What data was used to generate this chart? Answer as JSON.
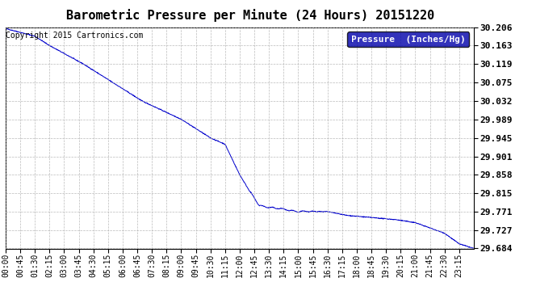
{
  "title": "Barometric Pressure per Minute (24 Hours) 20151220",
  "copyright_text": "Copyright 2015 Cartronics.com",
  "legend_label": "Pressure  (Inches/Hg)",
  "line_color": "#0000CC",
  "background_color": "#ffffff",
  "grid_color": "#aaaaaa",
  "legend_bg": "#0000AA",
  "legend_text_color": "#ffffff",
  "yticks": [
    29.684,
    29.727,
    29.771,
    29.815,
    29.858,
    29.901,
    29.945,
    29.989,
    30.032,
    30.075,
    30.119,
    30.163,
    30.206
  ],
  "ylim": [
    29.684,
    30.206
  ],
  "xtick_labels": [
    "00:00",
    "00:45",
    "01:30",
    "02:15",
    "03:00",
    "03:45",
    "04:30",
    "05:15",
    "06:00",
    "06:45",
    "07:30",
    "08:15",
    "09:00",
    "09:45",
    "10:30",
    "11:15",
    "12:00",
    "12:45",
    "13:30",
    "14:15",
    "15:00",
    "15:45",
    "16:30",
    "17:15",
    "18:00",
    "18:45",
    "19:30",
    "20:15",
    "21:00",
    "21:45",
    "22:30",
    "23:15"
  ],
  "title_fontsize": 11,
  "copyright_fontsize": 7,
  "tick_fontsize": 7,
  "ytick_fontsize": 8,
  "legend_fontsize": 8,
  "keypoints_t": [
    0,
    90,
    135,
    240,
    420,
    540,
    630,
    675,
    720,
    750,
    780,
    900,
    990,
    1050,
    1200,
    1260,
    1350,
    1395,
    1440
  ],
  "keypoints_v": [
    30.203,
    30.185,
    30.163,
    30.119,
    30.032,
    29.989,
    29.945,
    29.93,
    29.858,
    29.82,
    29.785,
    29.771,
    29.771,
    29.762,
    29.752,
    29.745,
    29.72,
    29.695,
    29.684
  ]
}
